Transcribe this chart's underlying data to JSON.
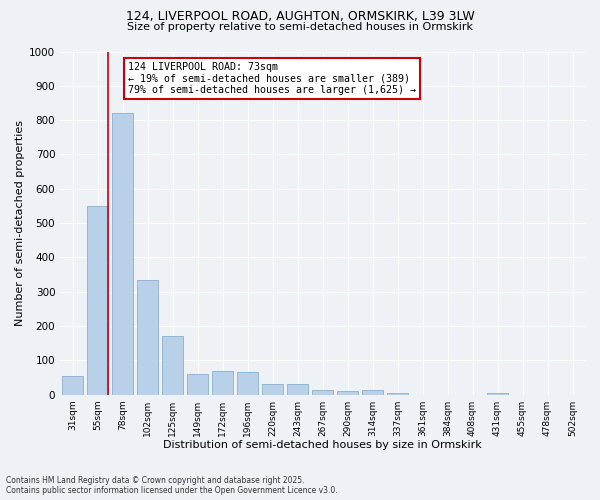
{
  "title_line1": "124, LIVERPOOL ROAD, AUGHTON, ORMSKIRK, L39 3LW",
  "title_line2": "Size of property relative to semi-detached houses in Ormskirk",
  "xlabel": "Distribution of semi-detached houses by size in Ormskirk",
  "ylabel": "Number of semi-detached properties",
  "categories": [
    "31sqm",
    "55sqm",
    "78sqm",
    "102sqm",
    "125sqm",
    "149sqm",
    "172sqm",
    "196sqm",
    "220sqm",
    "243sqm",
    "267sqm",
    "290sqm",
    "314sqm",
    "337sqm",
    "361sqm",
    "384sqm",
    "408sqm",
    "431sqm",
    "455sqm",
    "478sqm",
    "502sqm"
  ],
  "values": [
    55,
    550,
    820,
    335,
    170,
    60,
    70,
    65,
    32,
    30,
    12,
    10,
    12,
    5,
    0,
    0,
    0,
    5,
    0,
    0,
    0
  ],
  "bar_color": "#b8d0e8",
  "bar_edge_color": "#8ab0d0",
  "property_label": "124 LIVERPOOL ROAD: 73sqm",
  "annotation_line1": "← 19% of semi-detached houses are smaller (389)",
  "annotation_line2": "79% of semi-detached houses are larger (1,625) →",
  "annotation_box_facecolor": "#ffffff",
  "annotation_box_edgecolor": "#cc0000",
  "red_line_color": "#cc0000",
  "background_color": "#eef2f7",
  "grid_color": "#ffffff",
  "ylim": [
    0,
    1000
  ],
  "yticks": [
    0,
    100,
    200,
    300,
    400,
    500,
    600,
    700,
    800,
    900,
    1000
  ],
  "footnote_line1": "Contains HM Land Registry data © Crown copyright and database right 2025.",
  "footnote_line2": "Contains public sector information licensed under the Open Government Licence v3.0."
}
